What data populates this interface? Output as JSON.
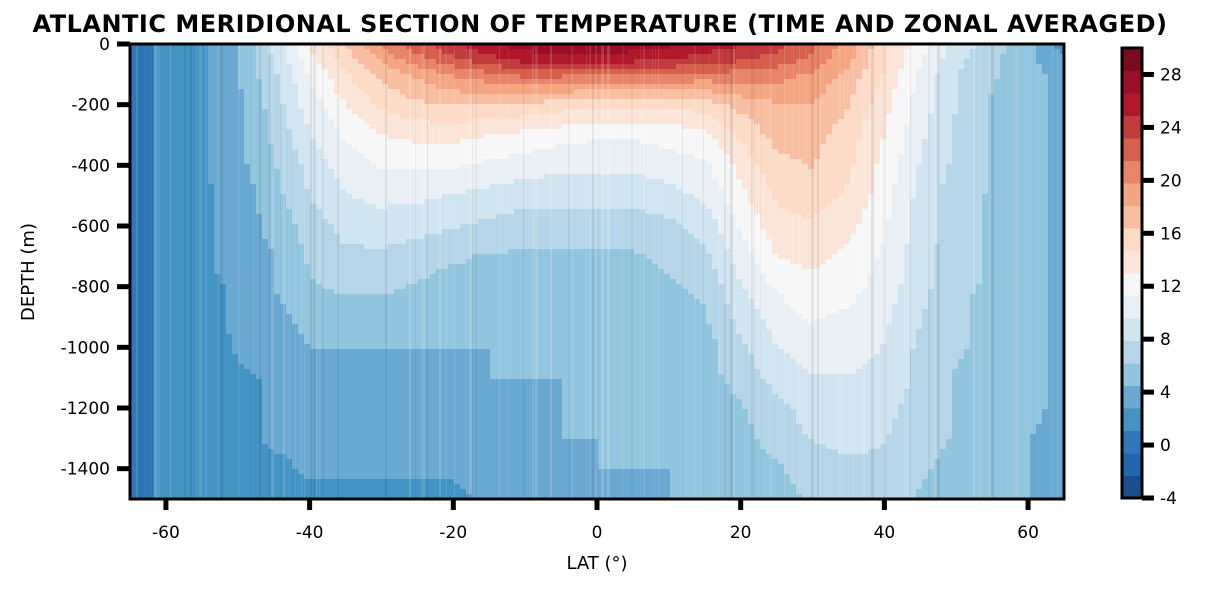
{
  "chart_data": {
    "type": "heatmap",
    "subtype": "filled-contour",
    "title": "ATLANTIC MERIDIONAL SECTION OF TEMPERATURE (TIME AND ZONAL AVERAGED)",
    "xlabel": "LAT (°)",
    "ylabel": "DEPTH (m)",
    "xlim": [
      -65,
      65
    ],
    "ylim": [
      -1500,
      0
    ],
    "x_ticks": [
      -60,
      -40,
      -20,
      0,
      20,
      40,
      60
    ],
    "x_tick_labels": [
      "-60",
      "-40",
      "-20",
      "0",
      "20",
      "40",
      "60"
    ],
    "y_ticks": [
      0,
      -200,
      -400,
      -600,
      -800,
      -1000,
      -1200,
      -1400
    ],
    "y_tick_labels": [
      "0",
      "-200",
      "-400",
      "-600",
      "-800",
      "-1000",
      "-1200",
      "-1400"
    ],
    "colormap": "RdBu_r",
    "colorbar": {
      "range": [
        -4,
        30
      ],
      "ticks": [
        -4,
        0,
        4,
        8,
        12,
        16,
        20,
        24,
        28
      ],
      "tick_labels": [
        "-4",
        "0",
        "4",
        "8",
        "12",
        "16",
        "20",
        "24",
        "28"
      ],
      "level_colors": [
        "#1b4f8c",
        "#2166ac",
        "#2f79b8",
        "#4393c3",
        "#6aa9d2",
        "#92c5de",
        "#b4d6e8",
        "#d1e5f0",
        "#e8f0f6",
        "#f7f7f7",
        "#fbe5d8",
        "#fddbc7",
        "#f8bfa3",
        "#f4a582",
        "#e8846a",
        "#d6604d",
        "#c13b3e",
        "#b2182b",
        "#9a0f27",
        "#7a0a1e"
      ]
    },
    "depth_samples": [
      0,
      50,
      100,
      200,
      300,
      400,
      500,
      600,
      700,
      800,
      900,
      1000,
      1100,
      1200,
      1300,
      1400,
      1500
    ],
    "lat_samples": [
      -65,
      -60,
      -55,
      -50,
      -45,
      -40,
      -35,
      -30,
      -25,
      -20,
      -15,
      -10,
      -5,
      0,
      5,
      10,
      15,
      20,
      25,
      30,
      35,
      40,
      45,
      50,
      55,
      60,
      65
    ],
    "temperature": [
      [
        0.5,
        1.5,
        2.5,
        4.5,
        8.5,
        13,
        16.5,
        20,
        22.5,
        24.5,
        26,
        27.5,
        28,
        28,
        27.5,
        27,
        26,
        25,
        24,
        22,
        19,
        15,
        12,
        9,
        7,
        5,
        2
      ],
      [
        0.5,
        1.5,
        2.5,
        4.5,
        8,
        12.5,
        15.5,
        18.5,
        21,
        23,
        24.5,
        25.5,
        26,
        26,
        25.5,
        25,
        24,
        23.5,
        22.5,
        21,
        18.5,
        15,
        11.5,
        8.5,
        6.5,
        5,
        3
      ],
      [
        0.5,
        1.5,
        2.5,
        4.5,
        7.5,
        11.5,
        14.5,
        17,
        18.5,
        20,
        21,
        22,
        22,
        21.5,
        21.5,
        21.5,
        21,
        21,
        20.5,
        19.5,
        17.5,
        14.5,
        11,
        8,
        6.5,
        5,
        4
      ],
      [
        0.5,
        1.5,
        2.5,
        4,
        7,
        10.5,
        13,
        15,
        16,
        16.5,
        16.5,
        16,
        15.5,
        15,
        15,
        15,
        15.5,
        17,
        18,
        18,
        16.5,
        13.5,
        10.5,
        8,
        6,
        5,
        4
      ],
      [
        0.5,
        1.5,
        2.5,
        4,
        6.5,
        9.5,
        11.5,
        13,
        13.5,
        13.5,
        13,
        12.5,
        12,
        11.5,
        11.5,
        12,
        12.5,
        15,
        17,
        17,
        15.5,
        13,
        10,
        7.5,
        6,
        5,
        4
      ],
      [
        0.5,
        1.5,
        2.5,
        4,
        6,
        8.5,
        10.5,
        11.5,
        11.5,
        11.5,
        11,
        10.5,
        10,
        10,
        10,
        10.5,
        11,
        13.5,
        16,
        16.5,
        15,
        12.5,
        9.5,
        7.5,
        6,
        5,
        4
      ],
      [
        0.5,
        1.5,
        2.5,
        3.5,
        5.5,
        8,
        9.5,
        10,
        10,
        9.5,
        9,
        8.5,
        8.5,
        8.5,
        8.5,
        9,
        10,
        12.5,
        15,
        15.5,
        14.5,
        12,
        9,
        7,
        6,
        5,
        4
      ],
      [
        0.5,
        1.5,
        2.5,
        3.5,
        5,
        7,
        8.5,
        9,
        8.5,
        8,
        7.5,
        7,
        7,
        7,
        7,
        7.5,
        8.5,
        11.5,
        14,
        14.5,
        13.5,
        11.5,
        9,
        7,
        6,
        5,
        4
      ],
      [
        0.5,
        1.5,
        2.5,
        3.5,
        4.5,
        6.5,
        7.5,
        7.5,
        7,
        6.5,
        6,
        6,
        6,
        6,
        6,
        6.5,
        7.5,
        10.5,
        13,
        13.5,
        12.5,
        11,
        8.5,
        7,
        6,
        5,
        4
      ],
      [
        0.5,
        1.5,
        2.5,
        3,
        4.5,
        6,
        6.5,
        6.5,
        6,
        5.5,
        5.5,
        5.5,
        5.5,
        5.5,
        5.5,
        6,
        6.5,
        9.5,
        11.5,
        12.5,
        12,
        10.5,
        8.5,
        6.5,
        6,
        5,
        4
      ],
      [
        0.5,
        1.5,
        2.5,
        3,
        4,
        5,
        5.5,
        5.5,
        5,
        5,
        5,
        5,
        5,
        5,
        5,
        5.5,
        6,
        8.5,
        10.5,
        11.5,
        11,
        10,
        8,
        6.5,
        5.5,
        5,
        4
      ],
      [
        0.5,
        1.5,
        2,
        3,
        3.5,
        4.5,
        4.5,
        4.5,
        4.5,
        4.5,
        4.5,
        4.5,
        4.5,
        4.5,
        4.5,
        5,
        5.5,
        7.5,
        9.5,
        10.5,
        10.5,
        9.5,
        7.5,
        6.5,
        5.5,
        5,
        4
      ],
      [
        0.5,
        1.5,
        2,
        2.5,
        3,
        4,
        4,
        4,
        4,
        4,
        4.5,
        4.5,
        4.5,
        4.5,
        4.5,
        5,
        5.5,
        7,
        8.5,
        9.5,
        9.5,
        9,
        7.5,
        6,
        5.5,
        5,
        4
      ],
      [
        0.5,
        1.5,
        2,
        2.5,
        3,
        3.5,
        3.5,
        3.5,
        3.5,
        3.5,
        4,
        4,
        4.5,
        4.5,
        4.5,
        5,
        5,
        6,
        7.5,
        8.5,
        9,
        8.5,
        7,
        6,
        5.5,
        5,
        4
      ],
      [
        0.5,
        1.5,
        2,
        2.5,
        3,
        3,
        3,
        3,
        3,
        3,
        3.5,
        4,
        4.5,
        4.5,
        4.5,
        4.5,
        5,
        5.5,
        7,
        8,
        8.5,
        8,
        7,
        6,
        5.5,
        4.5,
        4
      ],
      [
        0.5,
        1.5,
        2,
        2.5,
        2.5,
        3,
        3,
        3,
        3,
        3,
        3.5,
        4,
        4,
        4.5,
        4.5,
        4.5,
        4.5,
        5,
        6,
        7,
        7.5,
        7.5,
        6.5,
        5.5,
        5,
        4.5,
        4
      ],
      [
        0.5,
        1.5,
        2,
        2,
        2.5,
        2.5,
        2.5,
        2.5,
        2.5,
        2.5,
        3,
        3.5,
        4,
        4,
        4,
        4.5,
        4.5,
        5,
        5.5,
        6.5,
        7,
        7,
        6,
        5.5,
        5,
        4.5,
        4
      ]
    ]
  }
}
